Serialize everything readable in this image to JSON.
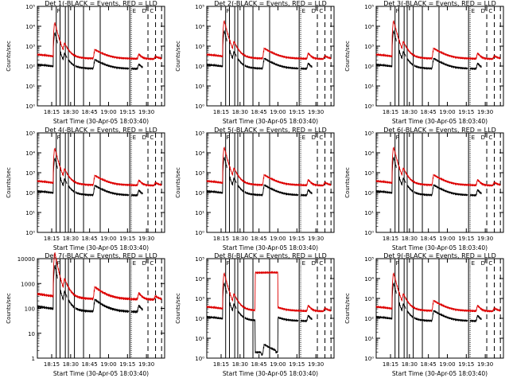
{
  "colors": {
    "events": "#000000",
    "lld": "#dd0000",
    "axis": "#000000"
  },
  "flags": {
    "F": "F",
    "E": "E",
    "D": "D",
    "C": "C"
  },
  "chart_data": [
    {
      "type": "line",
      "title": "Det 1(-BLACK = Events, RED = LLD",
      "ylabel": "Counts/sec",
      "xlabel": "Start Time (30-Apr-05 18:03:40)",
      "yscale": "log",
      "ylim": [
        1,
        100000
      ],
      "y_ticks": [
        "10⁰",
        "10¹",
        "10²",
        "10³",
        "10⁴",
        "10⁵"
      ],
      "x_ticks": [
        "18:15",
        "18:30",
        "18:45",
        "19:00",
        "19:15",
        "19:30"
      ],
      "flag_labels": [
        "F",
        "E",
        "D",
        "C"
      ],
      "series": [
        {
          "name": "BLACK = Events",
          "peak_factor": 0.8
        },
        {
          "name": "RED = LLD",
          "peak_factor": 0.8
        }
      ]
    },
    {
      "type": "line",
      "title": "Det 2(-BLACK = Events, RED = LLD",
      "ylabel": "Counts/sec",
      "xlabel": "Start Time (30-Apr-05 18:03:40)",
      "yscale": "log",
      "ylim": [
        1,
        100000
      ],
      "y_ticks": [
        "10⁰",
        "10¹",
        "10²",
        "10³",
        "10⁴",
        "10⁵"
      ],
      "x_ticks": [
        "18:15",
        "18:30",
        "18:45",
        "19:00",
        "19:15",
        "19:30"
      ],
      "flag_labels": [
        "F",
        "E",
        "D",
        "C"
      ],
      "series": [
        {
          "name": "BLACK = Events",
          "peak_factor": 1.0
        },
        {
          "name": "RED = LLD",
          "peak_factor": 1.0
        }
      ]
    },
    {
      "type": "line",
      "title": "Det 3(-BLACK = Events, RED = LLD",
      "ylabel": "Counts/sec",
      "xlabel": "Start Time (30-Apr-05 18:03:40)",
      "yscale": "log",
      "ylim": [
        1,
        100000
      ],
      "y_ticks": [
        "10⁰",
        "10¹",
        "10²",
        "10³",
        "10⁴",
        "10⁵"
      ],
      "x_ticks": [
        "18:15",
        "18:30",
        "18:45",
        "19:00",
        "19:15",
        "19:30"
      ],
      "flag_labels": [
        "F",
        "E",
        "D",
        "C"
      ],
      "series": [
        {
          "name": "BLACK = Events",
          "peak_factor": 1.0
        },
        {
          "name": "RED = LLD",
          "peak_factor": 1.0
        }
      ]
    },
    {
      "type": "line",
      "title": "Det 4(-BLACK = Events, RED = LLD",
      "ylabel": "Counts/sec",
      "xlabel": "Start Time (30-Apr-05 18:03:40)",
      "yscale": "log",
      "ylim": [
        1,
        100000
      ],
      "y_ticks": [
        "10⁰",
        "10¹",
        "10²",
        "10³",
        "10⁴",
        "10⁵"
      ],
      "x_ticks": [
        "18:15",
        "18:30",
        "18:45",
        "19:00",
        "19:15",
        "19:30"
      ],
      "flag_labels": [
        "F",
        "E",
        "D",
        "C"
      ],
      "series": [
        {
          "name": "BLACK = Events",
          "peak_factor": 0.9
        },
        {
          "name": "RED = LLD",
          "peak_factor": 0.9
        }
      ]
    },
    {
      "type": "line",
      "title": "Det 5(-BLACK = Events, RED = LLD",
      "ylabel": "Counts/sec",
      "xlabel": "Start Time (30-Apr-05 18:03:40)",
      "yscale": "log",
      "ylim": [
        1,
        100000
      ],
      "y_ticks": [
        "10⁰",
        "10¹",
        "10²",
        "10³",
        "10⁴",
        "10⁵"
      ],
      "x_ticks": [
        "18:15",
        "18:30",
        "18:45",
        "19:00",
        "19:15",
        "19:30"
      ],
      "flag_labels": [
        "F",
        "E",
        "D",
        "C"
      ],
      "series": [
        {
          "name": "BLACK = Events",
          "peak_factor": 1.0
        },
        {
          "name": "RED = LLD",
          "peak_factor": 1.0
        }
      ]
    },
    {
      "type": "line",
      "title": "Det 6(-BLACK = Events, RED = LLD",
      "ylabel": "Counts/sec",
      "xlabel": "Start Time (30-Apr-05 18:03:40)",
      "yscale": "log",
      "ylim": [
        1,
        100000
      ],
      "y_ticks": [
        "10⁰",
        "10¹",
        "10²",
        "10³",
        "10⁴",
        "10⁵"
      ],
      "x_ticks": [
        "18:15",
        "18:30",
        "18:45",
        "19:00",
        "19:15",
        "19:30"
      ],
      "flag_labels": [
        "F",
        "E",
        "D",
        "C"
      ],
      "series": [
        {
          "name": "BLACK = Events",
          "peak_factor": 1.0
        },
        {
          "name": "RED = LLD",
          "peak_factor": 1.0
        }
      ]
    },
    {
      "type": "line",
      "title": "Det 7(-BLACK = Events, RED = LLD",
      "ylabel": "Counts/sec",
      "xlabel": "Start Time (30-Apr-05 18:03:40)",
      "yscale": "log",
      "ylim": [
        1,
        10000
      ],
      "y_ticks": [
        "1",
        "10",
        "100",
        "1000",
        "10000"
      ],
      "x_ticks": [
        "18:15",
        "18:30",
        "18:45",
        "19:00",
        "19:15",
        "19:30"
      ],
      "flag_labels": [
        "F",
        "E",
        "D",
        "C"
      ],
      "series": [
        {
          "name": "BLACK = Events",
          "peak_factor": 0.9
        },
        {
          "name": "RED = LLD",
          "peak_factor": 0.9
        }
      ]
    },
    {
      "type": "line",
      "title": "Det 8(-BLACK = Events, RED = LLD",
      "ylabel": "Counts/sec",
      "xlabel": "Start Time (30-Apr-05 18:03:40)",
      "yscale": "log",
      "ylim": [
        1,
        100000
      ],
      "y_ticks": [
        "10⁰",
        "10¹",
        "10²",
        "10³",
        "10⁴",
        "10⁵"
      ],
      "x_ticks": [
        "18:15",
        "18:30",
        "18:45",
        "19:00",
        "19:15",
        "19:30"
      ],
      "flag_labels": [
        "F",
        "E",
        "D",
        "C"
      ],
      "saturation": {
        "x": [
          18.7,
          19.0
        ],
        "level": 20000
      },
      "series": [
        {
          "name": "BLACK = Events",
          "peak_factor": 1.0
        },
        {
          "name": "RED = LLD",
          "peak_factor": 1.0
        }
      ]
    },
    {
      "type": "line",
      "title": "Det 9(-BLACK = Events, RED = LLD",
      "ylabel": "Counts/sec",
      "xlabel": "Start Time (30-Apr-05 18:03:40)",
      "yscale": "log",
      "ylim": [
        1,
        100000
      ],
      "y_ticks": [
        "10⁰",
        "10¹",
        "10²",
        "10³",
        "10⁴",
        "10⁵"
      ],
      "x_ticks": [
        "18:15",
        "18:30",
        "18:45",
        "19:00",
        "19:15",
        "19:30"
      ],
      "flag_labels": [
        "F",
        "E",
        "D",
        "C"
      ],
      "series": [
        {
          "name": "BLACK = Events",
          "peak_factor": 1.0
        },
        {
          "name": "RED = LLD",
          "peak_factor": 1.0
        }
      ]
    }
  ]
}
